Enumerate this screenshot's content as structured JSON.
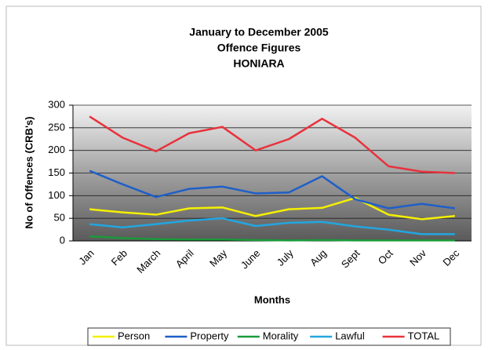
{
  "chart_data": {
    "type": "line",
    "title": [
      "January to December 2005",
      "Offence Figures",
      "HONIARA"
    ],
    "y_label": "No of Offences (CRB's)",
    "x_label": "Months",
    "categories": [
      "Jan",
      "Feb",
      "March",
      "April",
      "May",
      "June",
      "July",
      "Aug",
      "Sept",
      "Oct",
      "Nov",
      "Dec"
    ],
    "series": [
      {
        "name": "Person",
        "color": "#f5f000",
        "values": [
          70,
          63,
          58,
          72,
          74,
          55,
          70,
          73,
          95,
          58,
          48,
          55
        ]
      },
      {
        "name": "Property",
        "color": "#1f5fc8",
        "values": [
          155,
          125,
          97,
          115,
          120,
          105,
          107,
          143,
          92,
          72,
          82,
          72
        ]
      },
      {
        "name": "Morality",
        "color": "#1a9a3a",
        "values": [
          10,
          6,
          4,
          3,
          3,
          2,
          1,
          2,
          1,
          1,
          1,
          1
        ]
      },
      {
        "name": "Lawful",
        "color": "#22a6e0",
        "values": [
          37,
          30,
          37,
          45,
          50,
          33,
          40,
          42,
          32,
          25,
          15,
          15
        ]
      },
      {
        "name": "TOTAL",
        "color": "#e8323c",
        "values": [
          275,
          228,
          198,
          238,
          252,
          200,
          225,
          270,
          228,
          165,
          153,
          150
        ]
      }
    ],
    "ylim": [
      0,
      300
    ],
    "yticks": [
      0,
      50,
      100,
      150,
      200,
      250,
      300
    ],
    "grid": true,
    "legend": "bottom"
  }
}
